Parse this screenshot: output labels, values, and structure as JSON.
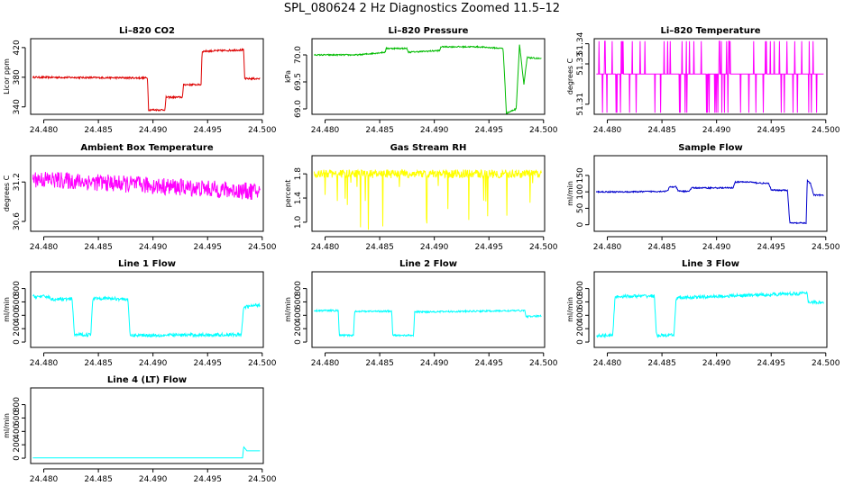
{
  "figure_title": "SPL_080624  2 Hz Diagnostics Zoomed 11.5–12",
  "colors": {
    "co2": "#dd0000",
    "pressure": "#00bb00",
    "temperature": "#ff00ff",
    "rh": "#ffff00",
    "sample": "#0000cc",
    "line": "#00ffff",
    "axis": "#000000"
  },
  "chart_data": [
    {
      "type": "line",
      "title": "Li–820 CO2",
      "ylabel": "Licor ppm",
      "xlim": [
        24.4788,
        24.5001
      ],
      "ylim": [
        330,
        432
      ],
      "xticks": [
        "24.480",
        "24.485",
        "24.490",
        "24.495",
        "24.500"
      ],
      "xtick_values": [
        24.48,
        24.485,
        24.49,
        24.495,
        24.5
      ],
      "yticks": [
        "340",
        "380",
        "420"
      ],
      "ytick_values": [
        340,
        380,
        420
      ],
      "color": "#dd0000",
      "noise": 1.2,
      "x": [
        24.479,
        24.4895,
        24.4896,
        24.4911,
        24.4912,
        24.4927,
        24.4928,
        24.4944,
        24.4945,
        24.4983,
        24.4984,
        24.4998
      ],
      "values": [
        380,
        379,
        336,
        336,
        353,
        353,
        370,
        370,
        415,
        417,
        378,
        378
      ]
    },
    {
      "type": "line",
      "title": "Li–820 Pressure",
      "ylabel": "kPa",
      "xlim": [
        24.4788,
        24.5001
      ],
      "ylim": [
        68.9,
        70.3
      ],
      "xticks": [
        "24.480",
        "24.485",
        "24.490",
        "24.495",
        "24.500"
      ],
      "xtick_values": [
        24.48,
        24.485,
        24.49,
        24.495,
        24.5
      ],
      "yticks": [
        "69.0",
        "69.5",
        "70.0"
      ],
      "ytick_values": [
        69.0,
        69.5,
        70.0
      ],
      "color": "#00bb00",
      "noise": 0.012,
      "x": [
        24.479,
        24.483,
        24.4855,
        24.4856,
        24.4875,
        24.4876,
        24.4905,
        24.4906,
        24.4938,
        24.4939,
        24.4963,
        24.4966,
        24.4975,
        24.4978,
        24.4982,
        24.4985,
        24.4998
      ],
      "values": [
        70.0,
        70.0,
        70.05,
        70.12,
        70.12,
        70.05,
        70.08,
        70.15,
        70.15,
        70.15,
        70.12,
        68.92,
        69.0,
        70.2,
        69.45,
        69.95,
        69.93
      ]
    },
    {
      "type": "line",
      "title": "Li–820 Temperature",
      "ylabel": "degrees C",
      "xlim": [
        24.4788,
        24.5001
      ],
      "ylim": [
        51.305,
        51.3425
      ],
      "xticks": [
        "24.480",
        "24.485",
        "24.490",
        "24.495",
        "24.500"
      ],
      "xtick_values": [
        24.48,
        24.485,
        24.49,
        24.495,
        24.5
      ],
      "yticks": [
        "51.31",
        "51.33",
        "51.34"
      ],
      "ytick_values": [
        51.31,
        51.33,
        51.34
      ],
      "color": "#ff00ff",
      "spikes": true,
      "x": [
        24.479,
        24.4998
      ],
      "values": [
        51.325,
        51.325
      ]
    },
    {
      "type": "line",
      "title": "Ambient Box Temperature",
      "ylabel": "degrees C",
      "xlim": [
        24.4788,
        24.5001
      ],
      "ylim": [
        30.45,
        31.6
      ],
      "xticks": [
        "24.480",
        "24.485",
        "24.490",
        "24.495",
        "24.500"
      ],
      "xtick_values": [
        24.48,
        24.485,
        24.49,
        24.495,
        24.5
      ],
      "yticks": [
        "30.6",
        "31.2"
      ],
      "ytick_values": [
        30.6,
        31.2
      ],
      "color": "#ff00ff",
      "noise": 0.13,
      "x": [
        24.479,
        24.4998
      ],
      "values": [
        31.25,
        31.05
      ]
    },
    {
      "type": "line",
      "title": "Gas Stream RH",
      "ylabel": "percent",
      "xlim": [
        24.4788,
        24.5001
      ],
      "ylim": [
        0.85,
        2.1
      ],
      "xticks": [
        "24.480",
        "24.485",
        "24.490",
        "24.495",
        "24.500"
      ],
      "xtick_values": [
        24.48,
        24.485,
        24.49,
        24.495,
        24.5
      ],
      "yticks": [
        "1.0",
        "1.4",
        "1.8"
      ],
      "ytick_values": [
        1.0,
        1.4,
        1.8
      ],
      "color": "#ffff00",
      "noise": 0.07,
      "dips": true,
      "x": [
        24.479,
        24.4998
      ],
      "values": [
        1.8,
        1.8
      ]
    },
    {
      "type": "line",
      "title": "Sample Flow",
      "ylabel": "ml/min",
      "xlim": [
        24.4788,
        24.5001
      ],
      "ylim": [
        -20,
        210
      ],
      "xticks": [
        "24.480",
        "24.485",
        "24.490",
        "24.495",
        "24.500"
      ],
      "xtick_values": [
        24.48,
        24.485,
        24.49,
        24.495,
        24.5
      ],
      "yticks": [
        "0",
        "50",
        "100",
        "150"
      ],
      "ytick_values": [
        0,
        50,
        100,
        150
      ],
      "color": "#0000cc",
      "noise": 2,
      "x": [
        24.479,
        24.482,
        24.4855,
        24.4857,
        24.4863,
        24.4865,
        24.4875,
        24.4877,
        24.4915,
        24.4917,
        24.4932,
        24.4934,
        24.4948,
        24.495,
        24.4965,
        24.4967,
        24.4982,
        24.4983,
        24.4986,
        24.4989,
        24.4998
      ],
      "values": [
        100,
        100,
        102,
        115,
        115,
        102,
        102,
        112,
        112,
        130,
        130,
        128,
        125,
        105,
        105,
        5,
        5,
        135,
        125,
        90,
        90
      ]
    },
    {
      "type": "line",
      "title": "Line 1 Flow",
      "ylabel": "ml/min",
      "xlim": [
        24.4788,
        24.5001
      ],
      "ylim": [
        -80,
        1050
      ],
      "xticks": [
        "24.480",
        "24.485",
        "24.490",
        "24.495",
        "24.500"
      ],
      "xtick_values": [
        24.48,
        24.485,
        24.49,
        24.495,
        24.5
      ],
      "yticks": [
        "0",
        "200",
        "400",
        "600",
        "800"
      ],
      "ytick_values": [
        0,
        200,
        400,
        600,
        800
      ],
      "color": "#00ffff",
      "noise": 25,
      "x": [
        24.479,
        24.4805,
        24.4806,
        24.4826,
        24.4828,
        24.4843,
        24.4845,
        24.4877,
        24.4879,
        24.4981,
        24.4983,
        24.4998
      ],
      "values": [
        680,
        680,
        640,
        640,
        110,
        110,
        660,
        640,
        100,
        110,
        520,
        560
      ]
    },
    {
      "type": "line",
      "title": "Line 2 Flow",
      "ylabel": "ml/min",
      "xlim": [
        24.4788,
        24.5001
      ],
      "ylim": [
        -80,
        1050
      ],
      "xticks": [
        "24.480",
        "24.485",
        "24.490",
        "24.495",
        "24.500"
      ],
      "xtick_values": [
        24.48,
        24.485,
        24.49,
        24.495,
        24.5
      ],
      "yticks": [
        "0",
        "200",
        "400",
        "600",
        "800"
      ],
      "ytick_values": [
        0,
        200,
        400,
        600,
        800
      ],
      "color": "#00ffff",
      "noise": 12,
      "x": [
        24.479,
        24.4812,
        24.4813,
        24.4826,
        24.4827,
        24.4861,
        24.4862,
        24.4881,
        24.4882,
        24.4983,
        24.4984,
        24.4998
      ],
      "values": [
        470,
        470,
        100,
        100,
        460,
        460,
        100,
        100,
        450,
        470,
        380,
        390
      ]
    },
    {
      "type": "line",
      "title": "Line 3 Flow",
      "ylabel": "ml/min",
      "xlim": [
        24.4788,
        24.5001
      ],
      "ylim": [
        -80,
        1050
      ],
      "xticks": [
        "24.480",
        "24.485",
        "24.490",
        "24.495",
        "24.500"
      ],
      "xtick_values": [
        24.48,
        24.485,
        24.49,
        24.495,
        24.5
      ],
      "yticks": [
        "0",
        "200",
        "400",
        "600",
        "800"
      ],
      "ytick_values": [
        0,
        200,
        400,
        600,
        800
      ],
      "color": "#00ffff",
      "noise": 25,
      "x": [
        24.479,
        24.4805,
        24.4807,
        24.4843,
        24.4845,
        24.4861,
        24.4863,
        24.4983,
        24.4984,
        24.4998
      ],
      "values": [
        100,
        100,
        680,
        690,
        100,
        100,
        660,
        730,
        600,
        590
      ]
    },
    {
      "type": "line",
      "title": "Line 4 (LT) Flow",
      "ylabel": "ml/min",
      "xlim": [
        24.4788,
        24.5001
      ],
      "ylim": [
        -80,
        1050
      ],
      "xticks": [
        "24.480",
        "24.485",
        "24.490",
        "24.495",
        "24.500"
      ],
      "xtick_values": [
        24.48,
        24.485,
        24.49,
        24.495,
        24.5
      ],
      "yticks": [
        "0",
        "200",
        "400",
        "600",
        "800"
      ],
      "ytick_values": [
        0,
        200,
        400,
        600,
        800
      ],
      "color": "#00ffff",
      "noise": 0,
      "x": [
        24.479,
        24.4982,
        24.4983,
        24.4986,
        24.4998
      ],
      "values": [
        5,
        5,
        170,
        110,
        110
      ]
    }
  ]
}
